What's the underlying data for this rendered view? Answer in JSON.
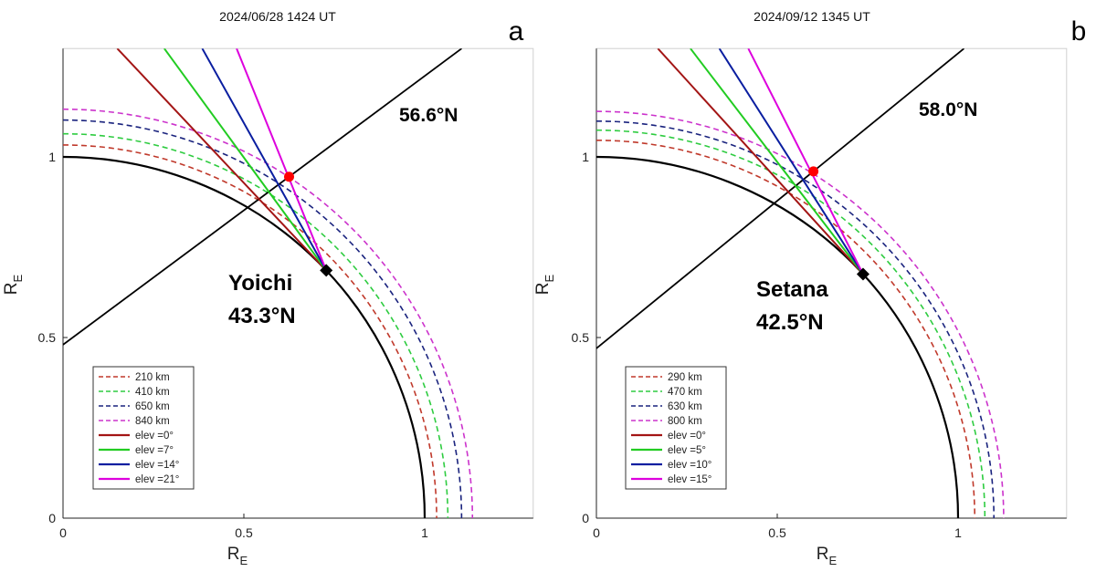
{
  "chart_data": [
    {
      "type": "line",
      "panel_letter": "a",
      "title": "2024/06/28 1424 UT",
      "xlabel": "R",
      "xlabel_sub": "E",
      "ylabel": "R",
      "ylabel_sub": "E",
      "xlim": [
        0,
        1.3
      ],
      "ylim": [
        0,
        1.3
      ],
      "x_ticks": [
        {
          "v": 0,
          "label": "0"
        },
        {
          "v": 0.5,
          "label": "0.5"
        },
        {
          "v": 1,
          "label": "1"
        }
      ],
      "y_ticks": [
        {
          "v": 0,
          "label": "0"
        },
        {
          "v": 0.5,
          "label": "0.5"
        },
        {
          "v": 1,
          "label": "1"
        }
      ],
      "station": {
        "name": "Yoichi",
        "lat_label": "43.3°N",
        "lat_deg": 43.3
      },
      "meridian": {
        "label": "56.6°N",
        "lat_deg": 56.6
      },
      "intersection": {
        "x": 0.625,
        "y": 0.945
      },
      "altitudes": [
        {
          "label": "210 km",
          "r": 1.033,
          "color": "#c0392b"
        },
        {
          "label": "410 km",
          "r": 1.064,
          "color": "#2ecc40"
        },
        {
          "label": "650 km",
          "r": 1.102,
          "color": "#1a237e"
        },
        {
          "label": "840 km",
          "r": 1.132,
          "color": "#cc33cc"
        }
      ],
      "beams": [
        {
          "label": "elev =0°",
          "end": [
            0.15,
            1.3
          ],
          "color": "#a31515"
        },
        {
          "label": "elev =7°",
          "end": [
            0.28,
            1.3
          ],
          "color": "#22cc22"
        },
        {
          "label": "elev =14°",
          "end": [
            0.385,
            1.3
          ],
          "color": "#0a1ea0"
        },
        {
          "label": "elev =21°",
          "end": [
            0.48,
            1.3
          ],
          "color": "#dd00dd"
        }
      ]
    },
    {
      "type": "line",
      "panel_letter": "b",
      "title": "2024/09/12 1345 UT",
      "xlabel": "R",
      "xlabel_sub": "E",
      "ylabel": "R",
      "ylabel_sub": "E",
      "xlim": [
        0,
        1.3
      ],
      "ylim": [
        0,
        1.3
      ],
      "x_ticks": [
        {
          "v": 0,
          "label": "0"
        },
        {
          "v": 0.5,
          "label": "0.5"
        },
        {
          "v": 1,
          "label": "1"
        }
      ],
      "y_ticks": [
        {
          "v": 0,
          "label": "0"
        },
        {
          "v": 0.5,
          "label": "0.5"
        },
        {
          "v": 1,
          "label": "1"
        }
      ],
      "station": {
        "name": "Setana",
        "lat_label": "42.5°N",
        "lat_deg": 42.5
      },
      "meridian": {
        "label": "58.0°N",
        "lat_deg": 58.0
      },
      "intersection": {
        "x": 0.6,
        "y": 0.96
      },
      "altitudes": [
        {
          "label": "290 km",
          "r": 1.046,
          "color": "#c0392b"
        },
        {
          "label": "470 km",
          "r": 1.074,
          "color": "#2ecc40"
        },
        {
          "label": "630 km",
          "r": 1.099,
          "color": "#1a237e"
        },
        {
          "label": "800 km",
          "r": 1.126,
          "color": "#cc33cc"
        }
      ],
      "beams": [
        {
          "label": "elev =0°",
          "end": [
            0.17,
            1.3
          ],
          "color": "#a31515"
        },
        {
          "label": "elev =5°",
          "end": [
            0.26,
            1.3
          ],
          "color": "#22cc22"
        },
        {
          "label": "elev =10°",
          "end": [
            0.34,
            1.3
          ],
          "color": "#0a1ea0"
        },
        {
          "label": "elev =15°",
          "end": [
            0.42,
            1.3
          ],
          "color": "#dd00dd"
        }
      ]
    }
  ]
}
